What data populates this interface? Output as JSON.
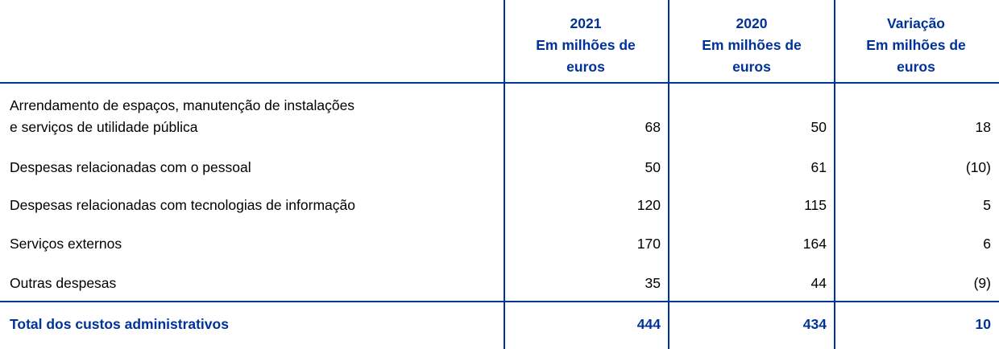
{
  "header": {
    "columns": [
      {
        "year": "2021",
        "unit": "Em milhões de euros"
      },
      {
        "year": "2020",
        "unit": "Em milhões de euros"
      },
      {
        "year": "Variação",
        "unit": "Em milhões de euros"
      }
    ]
  },
  "rows": [
    {
      "label_line1": "Arrendamento de espaços, manutenção de instalações",
      "label_line2": "e serviços de utilidade pública",
      "v2021": "68",
      "v2020": "50",
      "var": "18"
    },
    {
      "label": "Despesas relacionadas com o pessoal",
      "v2021": "50",
      "v2020": "61",
      "var": "(10)"
    },
    {
      "label": "Despesas relacionadas com tecnologias de informação",
      "v2021": "120",
      "v2020": "115",
      "var": "5"
    },
    {
      "label": "Serviços externos",
      "v2021": "170",
      "v2020": "164",
      "var": "6"
    },
    {
      "label": "Outras despesas",
      "v2021": "35",
      "v2020": "44",
      "var": "(9)"
    }
  ],
  "total": {
    "label": "Total dos custos administrativos",
    "v2021": "444",
    "v2020": "434",
    "var": "10"
  },
  "colors": {
    "accent": "#003299"
  }
}
